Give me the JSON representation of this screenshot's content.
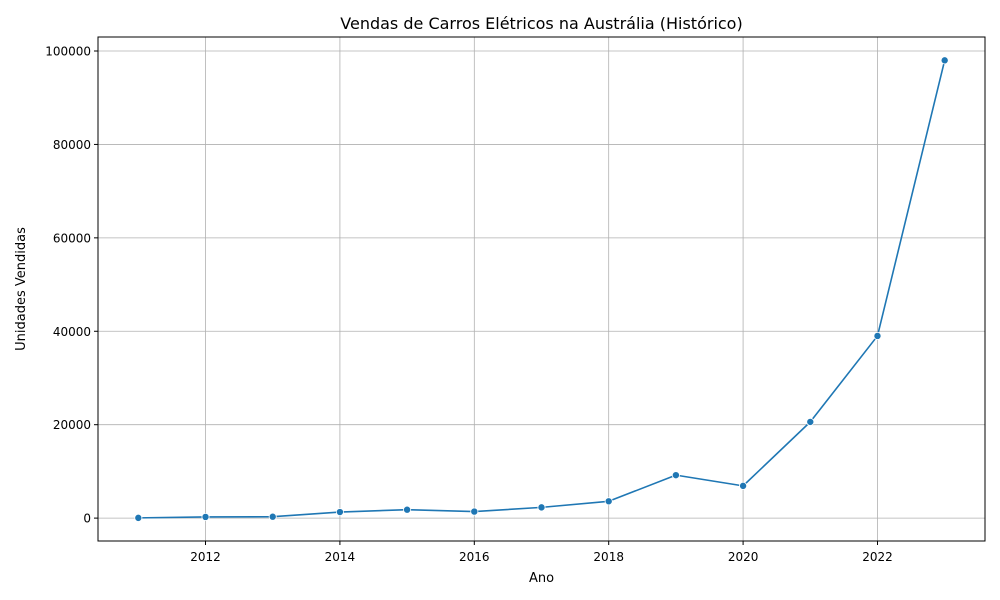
{
  "chart_data": {
    "type": "line",
    "title": "Vendas de Carros Elétricos na Austrália (Histórico)",
    "xlabel": "Ano",
    "ylabel": "Unidades Vendidas",
    "xlim": [
      2010.4,
      2023.6
    ],
    "ylim": [
      -4900,
      103000
    ],
    "x_ticks": [
      2012,
      2014,
      2016,
      2018,
      2020,
      2022
    ],
    "y_ticks": [
      0,
      20000,
      40000,
      60000,
      80000,
      100000
    ],
    "grid": true,
    "series": [
      {
        "color": "#1f77b4",
        "marker": "circle",
        "x": [
          2011,
          2012,
          2013,
          2014,
          2015,
          2016,
          2017,
          2018,
          2019,
          2020,
          2021,
          2022,
          2023
        ],
        "y": [
          50,
          250,
          300,
          1300,
          1800,
          1400,
          2300,
          3600,
          9200,
          6900,
          20600,
          39000,
          98000
        ]
      }
    ]
  }
}
